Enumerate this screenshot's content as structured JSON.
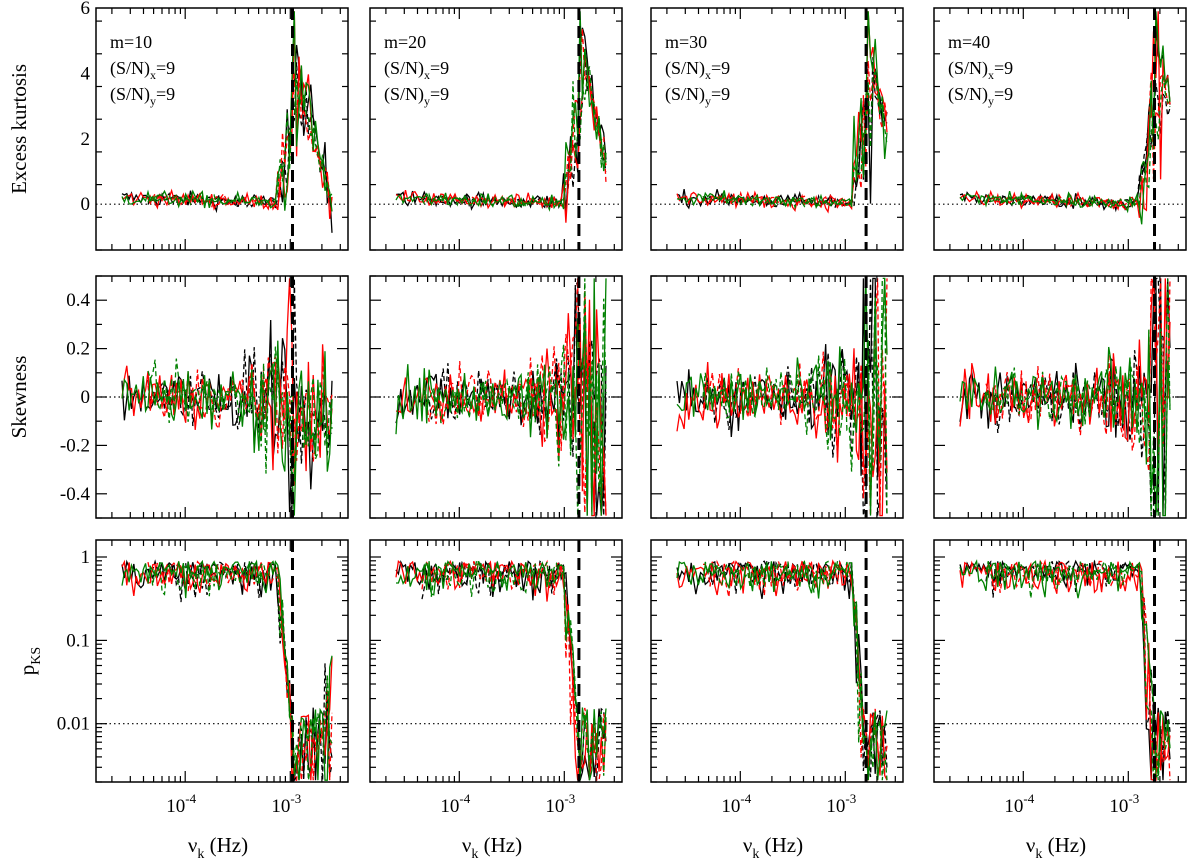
{
  "figure": {
    "x_axis_label": "ν",
    "x_axis_label_sub": "k",
    "x_axis_label_unit": "(Hz)",
    "x_tick_labels": [
      {
        "value": 0.0001,
        "base": "10",
        "exp": "-4"
      },
      {
        "value": 0.001,
        "base": "10",
        "exp": "-3"
      }
    ],
    "x_range_log10": [
      -4.85,
      -2.45
    ]
  },
  "chart_data": [
    {
      "type": "line",
      "row": "kurtosis",
      "ylabel": "Excess kurtosis",
      "ylim": [
        -1.4,
        6.0
      ],
      "yticks": [
        0,
        2,
        4,
        6
      ],
      "ytick_labels": [
        "0",
        "2",
        "4",
        "6"
      ],
      "reference_line": 0,
      "y_scale": "linear"
    },
    {
      "type": "line",
      "row": "skewness",
      "ylabel": "Skewness",
      "ylim": [
        -0.5,
        0.5
      ],
      "yticks": [
        -0.4,
        -0.2,
        0,
        0.2,
        0.4
      ],
      "ytick_labels": [
        "-0.4",
        "-0.2",
        "0",
        "0.2",
        "0.4"
      ],
      "reference_line": 0,
      "y_scale": "linear"
    },
    {
      "type": "line",
      "row": "pks",
      "ylabel": "p",
      "ylabel_sub": "KS",
      "ylim": [
        0.002,
        1.6
      ],
      "yticks": [
        0.01,
        0.1,
        1
      ],
      "ytick_labels": [
        "0.01",
        "0.1",
        "1"
      ],
      "reference_line": 0.01,
      "y_scale": "log"
    }
  ],
  "columns": [
    {
      "m_label": "m=10",
      "sn_x": "(S/N)",
      "sn_x_sub": "x",
      "sn_x_val": "=9",
      "sn_y": "(S/N)",
      "sn_y_sub": "y",
      "sn_y_val": "=9",
      "cutoff_hz": 0.00105
    },
    {
      "m_label": "m=20",
      "sn_x": "(S/N)",
      "sn_x_sub": "x",
      "sn_x_val": "=9",
      "sn_y": "(S/N)",
      "sn_y_sub": "y",
      "sn_y_val": "=9",
      "cutoff_hz": 0.00138
    },
    {
      "m_label": "m=30",
      "sn_x": "(S/N)",
      "sn_x_sub": "x",
      "sn_x_val": "=9",
      "sn_y": "(S/N)",
      "sn_y_sub": "y",
      "sn_y_val": "=9",
      "cutoff_hz": 0.00158
    },
    {
      "m_label": "m=40",
      "sn_x": "(S/N)",
      "sn_x_sub": "x",
      "sn_x_val": "=9",
      "sn_y": "(S/N)",
      "sn_y_sub": "y",
      "sn_y_val": "=9",
      "cutoff_hz": 0.00178
    }
  ],
  "series": [
    {
      "name": "black solid",
      "color": "#000000",
      "dash": "solid"
    },
    {
      "name": "black dashed",
      "color": "#000000",
      "dash": "dashed"
    },
    {
      "name": "red solid",
      "color": "#ff0000",
      "dash": "solid"
    },
    {
      "name": "red dashed",
      "color": "#ff0000",
      "dash": "dashed"
    },
    {
      "name": "green solid",
      "color": "#008000",
      "dash": "solid"
    },
    {
      "name": "green dashed",
      "color": "#008000",
      "dash": "dashed"
    }
  ],
  "freq_range_hz": [
    2.5e-05,
    0.0025
  ]
}
